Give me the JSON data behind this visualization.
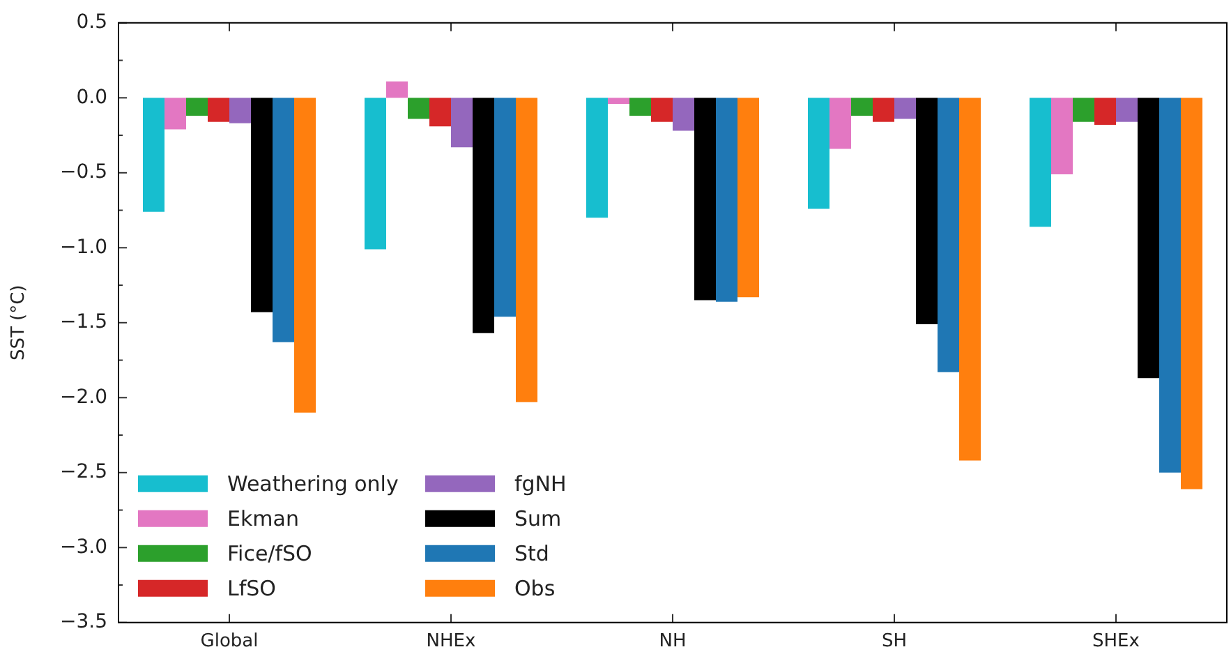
{
  "chart_data": {
    "type": "bar",
    "ylabel": "SST (°C)",
    "categories": [
      "Global",
      "NHEx",
      "NH",
      "SH",
      "SHEx"
    ],
    "series": [
      {
        "name": "Weathering only",
        "color": "#17becf",
        "values": [
          -0.76,
          -1.01,
          -0.8,
          -0.74,
          -0.86
        ]
      },
      {
        "name": "Ekman",
        "color": "#e377c2",
        "values": [
          -0.21,
          0.11,
          -0.04,
          -0.34,
          -0.51
        ]
      },
      {
        "name": "Fice/fSO",
        "color": "#2ca02c",
        "values": [
          -0.12,
          -0.14,
          -0.12,
          -0.12,
          -0.16
        ]
      },
      {
        "name": "LfSO",
        "color": "#d62728",
        "values": [
          -0.16,
          -0.19,
          -0.16,
          -0.16,
          -0.18
        ]
      },
      {
        "name": "fgNH",
        "color": "#9467bd",
        "values": [
          -0.17,
          -0.33,
          -0.22,
          -0.14,
          -0.16
        ]
      },
      {
        "name": "Sum",
        "color": "#000000",
        "values": [
          -1.43,
          -1.57,
          -1.35,
          -1.51,
          -1.87
        ]
      },
      {
        "name": "Std",
        "color": "#1f77b4",
        "values": [
          -1.63,
          -1.46,
          -1.36,
          -1.83,
          -2.5
        ]
      },
      {
        "name": "Obs",
        "color": "#ff7f0e",
        "values": [
          -2.1,
          -2.03,
          -1.33,
          -2.42,
          -2.61
        ]
      }
    ],
    "ylim": [
      -3.5,
      0.5
    ],
    "yticks": [
      0.5,
      {
        "value": 0.25,
        "label": null
      },
      {
        "value": 0,
        "label": "0.0"
      },
      {
        "value": -0.25,
        "label": null
      },
      {
        "value": -0.5,
        "label": "−0.5"
      },
      {
        "value": -0.75,
        "label": null
      },
      {
        "value": -1.0,
        "label": "−1.0"
      },
      {
        "value": -1.25,
        "label": null
      },
      {
        "value": -1.5,
        "label": "−1.5"
      },
      {
        "value": -1.75,
        "label": null
      },
      {
        "value": -2.0,
        "label": "−2.0"
      },
      {
        "value": -2.25,
        "label": null
      },
      {
        "value": -2.5,
        "label": "−2.5"
      },
      {
        "value": -2.75,
        "label": null
      },
      {
        "value": -3.0,
        "label": "−3.0"
      },
      {
        "value": -3.25,
        "label": null
      },
      {
        "value": -3.5,
        "label": "−3.5"
      }
    ],
    "grid": false,
    "legend": "bottom left"
  }
}
